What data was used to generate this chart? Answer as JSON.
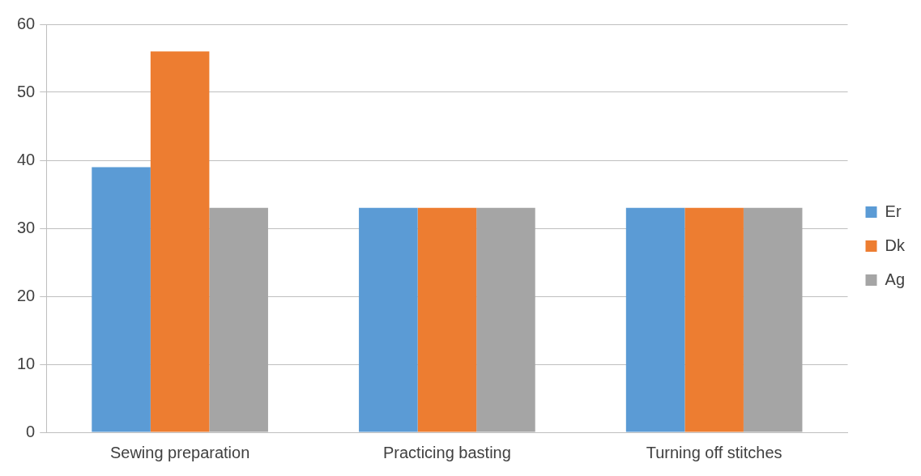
{
  "chart_data": {
    "type": "bar",
    "categories": [
      "Sewing preparation",
      "Practicing basting",
      "Turning off stitches"
    ],
    "series": [
      {
        "name": "Er",
        "color": "#5b9bd5",
        "values": [
          39,
          33,
          33
        ]
      },
      {
        "name": "Dk",
        "color": "#ed7d31",
        "values": [
          56,
          33,
          33
        ]
      },
      {
        "name": "Ag",
        "color": "#a5a5a5",
        "values": [
          33,
          33,
          33
        ]
      }
    ],
    "ylim": [
      0,
      60
    ],
    "yticks": [
      0,
      10,
      20,
      30,
      40,
      50,
      60
    ],
    "grid": "y",
    "legend": "right"
  }
}
